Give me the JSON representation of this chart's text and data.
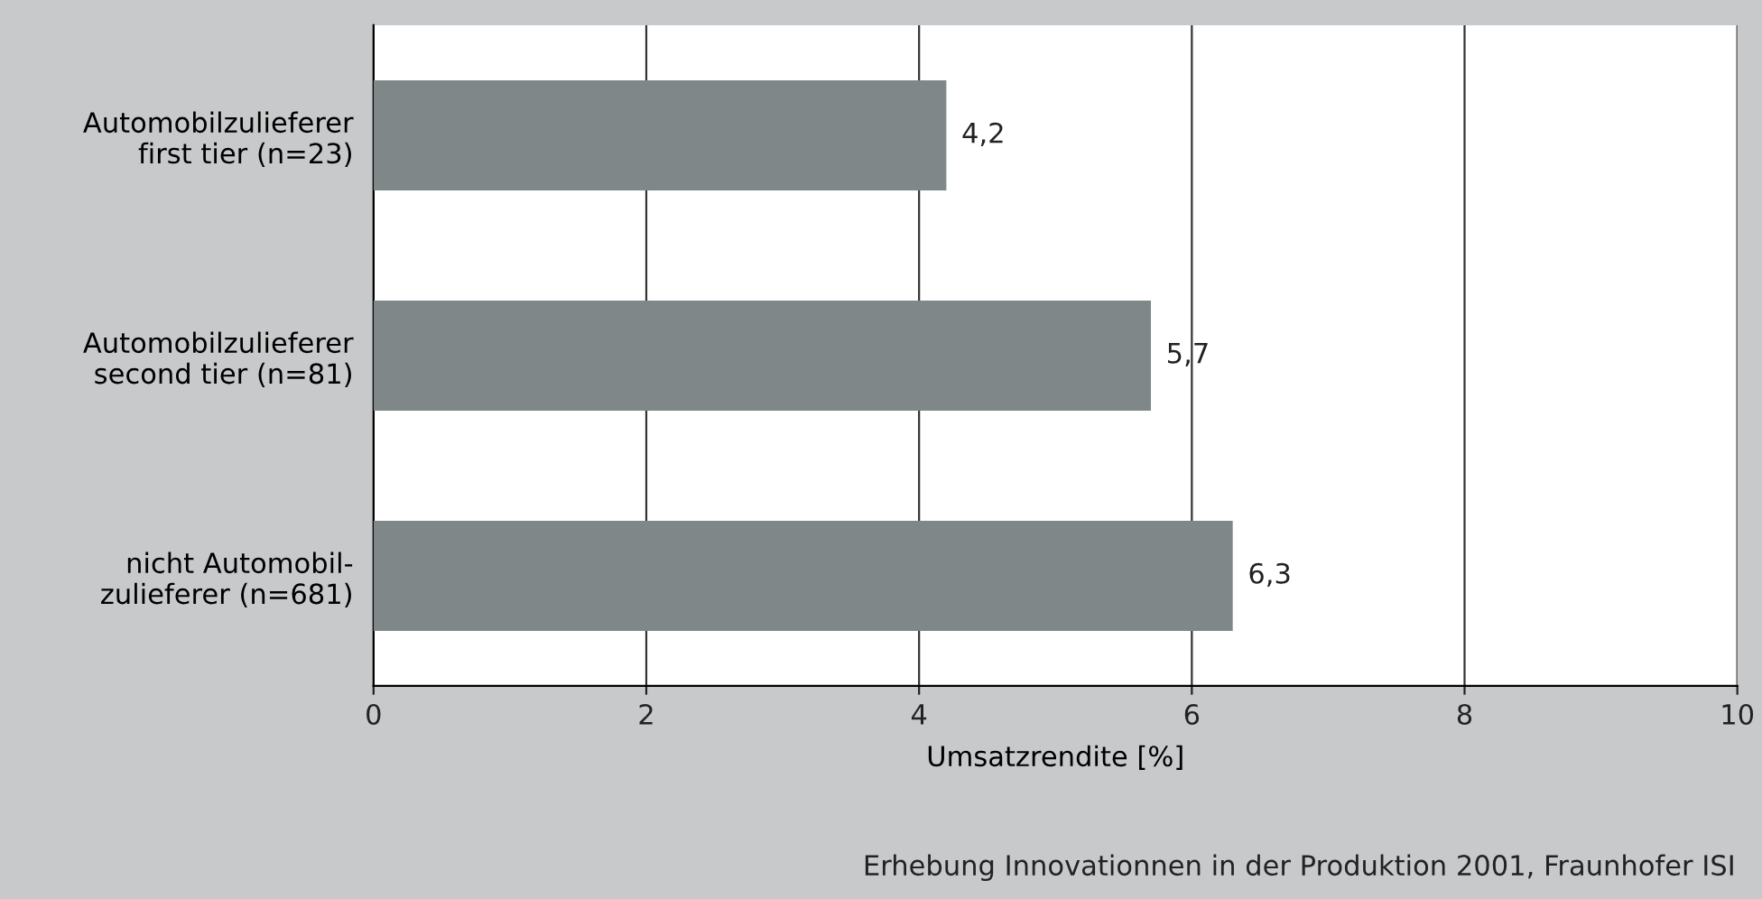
{
  "chart_data": {
    "type": "bar",
    "orientation": "horizontal",
    "categories": [
      "Automobilzulieferer\nfirst tier (n=23)",
      "Automobilzulieferer\nsecond tier (n=81)",
      "nicht Automobil-\nzulieferer (n=681)"
    ],
    "values": [
      4.2,
      5.7,
      6.3
    ],
    "color": "#7f8788",
    "value_labels": [
      "4,2",
      "5,7",
      "6,3"
    ],
    "xlim": [
      0,
      10
    ],
    "xticks": [
      0,
      2,
      4,
      6,
      8,
      10
    ],
    "grid": "x",
    "xlabel": "Umsatzrendite [%]",
    "annotations": [
      "Erhebung Innovationnen in der Produktion 2001, Fraunhofer ISI"
    ]
  }
}
